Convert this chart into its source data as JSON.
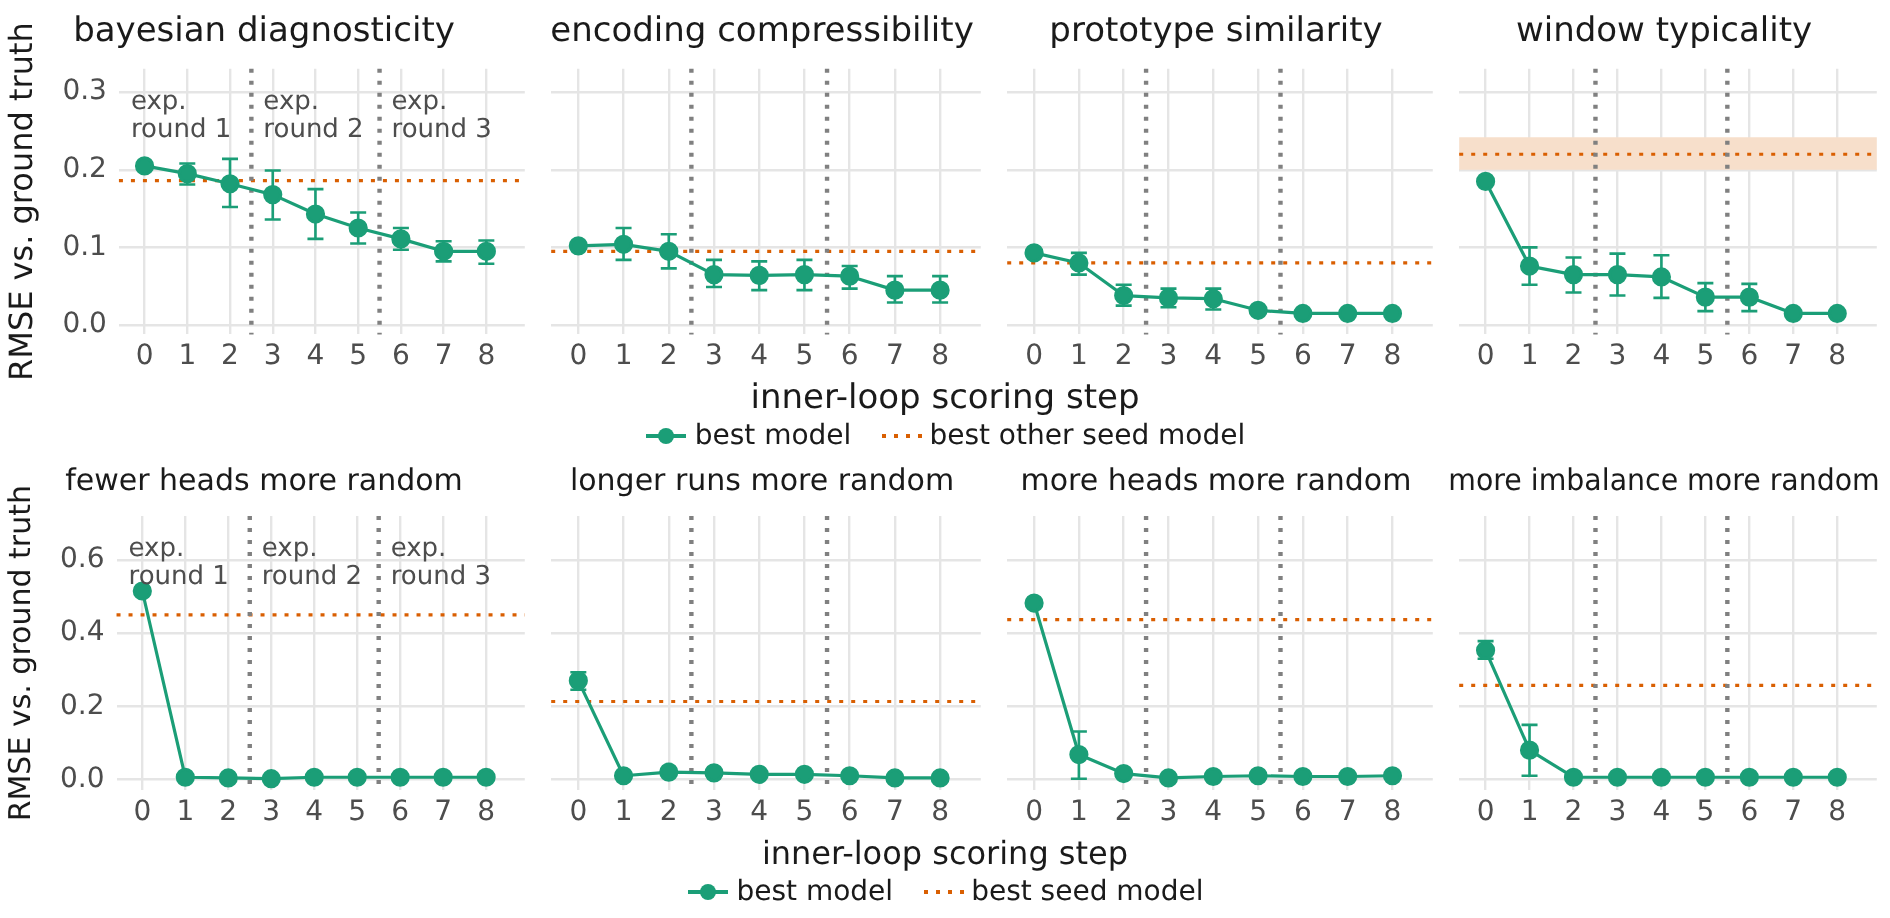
{
  "chart_data": [
    {
      "type": "line",
      "title": "bayesian diagnosticity",
      "ylabel": "RMSE vs. ground truth",
      "x": [
        0,
        1,
        2,
        3,
        4,
        5,
        6,
        7,
        8
      ],
      "xlim": [
        -0.6,
        8.9
      ],
      "xticks": [
        0,
        1,
        2,
        3,
        4,
        5,
        6,
        7,
        8
      ],
      "ylim": [
        -0.012,
        0.33
      ],
      "yticks": [
        {
          "value": 0,
          "label": "0.0"
        },
        {
          "value": 0.1,
          "label": "0.1"
        },
        {
          "value": 0.2,
          "label": "0.2"
        },
        {
          "value": 0.3,
          "label": "0.3"
        }
      ],
      "grid": true,
      "legend": "bottom",
      "series": [
        {
          "name": "best model",
          "color": "#1b9e77",
          "marker": "circle",
          "values": [
            0.205,
            0.195,
            0.182,
            0.168,
            0.143,
            0.125,
            0.111,
            0.095,
            0.095
          ],
          "errors": [
            null,
            [
              0.181,
              0.208
            ],
            [
              0.152,
              0.214
            ],
            [
              0.136,
              0.199
            ],
            [
              0.111,
              0.175
            ],
            [
              0.105,
              0.145
            ],
            [
              0.097,
              0.125
            ],
            [
              0.082,
              0.108
            ],
            [
              0.079,
              0.109
            ]
          ]
        }
      ],
      "ref_lines": [
        {
          "axis": "y",
          "value": 0.186,
          "label": "best other seed model",
          "color": "#d95f02",
          "line_style": "dotted"
        },
        {
          "axis": "x",
          "value": 2.5,
          "color": "#808080",
          "line_style": "dotted"
        },
        {
          "axis": "x",
          "value": 5.5,
          "color": "#808080",
          "line_style": "dotted"
        }
      ],
      "annotations": [
        "exp.\nround 1",
        "exp.\nround 2",
        "exp.\nround 3"
      ]
    },
    {
      "type": "line",
      "title": "encoding compressibility",
      "xlabel": "inner-loop scoring step",
      "x": [
        0,
        1,
        2,
        3,
        4,
        5,
        6,
        7,
        8
      ],
      "xlim": [
        -0.6,
        8.9
      ],
      "xticks": [
        0,
        1,
        2,
        3,
        4,
        5,
        6,
        7,
        8
      ],
      "ylim": [
        -0.012,
        0.33
      ],
      "yticks": [
        0,
        0.1,
        0.2,
        0.3
      ],
      "grid": true,
      "tick_labels": "x",
      "series": [
        {
          "color": "#1b9e77",
          "marker": "circle",
          "values": [
            0.102,
            0.104,
            0.095,
            0.065,
            0.064,
            0.065,
            0.063,
            0.045,
            0.045
          ],
          "errors": [
            null,
            [
              0.084,
              0.125
            ],
            [
              0.073,
              0.117
            ],
            [
              0.049,
              0.084
            ],
            [
              0.045,
              0.082
            ],
            [
              0.045,
              0.084
            ],
            [
              0.047,
              0.076
            ],
            [
              0.029,
              0.063
            ],
            [
              0.029,
              0.063
            ]
          ]
        }
      ],
      "ref_lines": [
        {
          "axis": "y",
          "value": 0.095,
          "color": "#d95f02",
          "line_style": "dotted"
        },
        {
          "axis": "x",
          "value": 2.5,
          "color": "#808080",
          "line_style": "dotted"
        },
        {
          "axis": "x",
          "value": 5.5,
          "color": "#808080",
          "line_style": "dotted"
        }
      ]
    },
    {
      "type": "line",
      "title": "prototype similarity",
      "x": [
        0,
        1,
        2,
        3,
        4,
        5,
        6,
        7,
        8
      ],
      "xlim": [
        -0.6,
        8.9
      ],
      "xticks": [
        0,
        1,
        2,
        3,
        4,
        5,
        6,
        7,
        8
      ],
      "ylim": [
        -0.012,
        0.33
      ],
      "yticks": [
        0,
        0.1,
        0.2,
        0.3
      ],
      "grid": true,
      "tick_labels": "x",
      "series": [
        {
          "color": "#1b9e77",
          "marker": "circle",
          "values": [
            0.093,
            0.08,
            0.038,
            0.035,
            0.034,
            0.019,
            0.015,
            0.015,
            0.015
          ],
          "errors": [
            null,
            [
              0.065,
              0.093
            ],
            [
              0.025,
              0.052
            ],
            [
              0.023,
              0.047
            ],
            [
              0.02,
              0.047
            ],
            null,
            null,
            null,
            null
          ]
        }
      ],
      "ref_lines": [
        {
          "axis": "y",
          "value": 0.08,
          "color": "#d95f02",
          "line_style": "dotted"
        },
        {
          "axis": "x",
          "value": 2.5,
          "color": "#808080",
          "line_style": "dotted"
        },
        {
          "axis": "x",
          "value": 5.5,
          "color": "#808080",
          "line_style": "dotted"
        }
      ]
    },
    {
      "type": "line",
      "title": "window typicality",
      "x": [
        0,
        1,
        2,
        3,
        4,
        5,
        6,
        7,
        8
      ],
      "xlim": [
        -0.6,
        8.9
      ],
      "xticks": [
        0,
        1,
        2,
        3,
        4,
        5,
        6,
        7,
        8
      ],
      "ylim": [
        -0.012,
        0.33
      ],
      "yticks": [
        0,
        0.1,
        0.2,
        0.3
      ],
      "grid": true,
      "tick_labels": "x",
      "series": [
        {
          "color": "#1b9e77",
          "marker": "circle",
          "values": [
            0.185,
            0.076,
            0.065,
            0.065,
            0.062,
            0.036,
            0.036,
            0.015,
            0.015
          ],
          "errors": [
            null,
            [
              0.052,
              0.1
            ],
            [
              0.042,
              0.087
            ],
            [
              0.038,
              0.092
            ],
            [
              0.035,
              0.09
            ],
            [
              0.018,
              0.054
            ],
            [
              0.018,
              0.053
            ],
            null,
            null
          ]
        }
      ],
      "bands": [
        {
          "axis": "y",
          "from": 0.2,
          "to": 0.242,
          "color": "#f7dfcb"
        }
      ],
      "ref_lines": [
        {
          "axis": "y",
          "value": 0.22,
          "color": "#d95f02",
          "line_style": "dotted"
        },
        {
          "axis": "x",
          "value": 2.5,
          "color": "#808080",
          "line_style": "dotted"
        },
        {
          "axis": "x",
          "value": 5.5,
          "color": "#808080",
          "line_style": "dotted"
        }
      ]
    },
    {
      "type": "line",
      "title": "fewer heads more random",
      "ylabel": "RMSE vs. ground truth",
      "x": [
        0,
        1,
        2,
        3,
        4,
        5,
        6,
        7,
        8
      ],
      "xlim": [
        -0.6,
        8.9
      ],
      "xticks": [
        0,
        1,
        2,
        3,
        4,
        5,
        6,
        7,
        8
      ],
      "ylim": [
        -0.03,
        0.72
      ],
      "yticks": [
        {
          "value": 0,
          "label": "0.0"
        },
        {
          "value": 0.2,
          "label": "0.2"
        },
        {
          "value": 0.4,
          "label": "0.4"
        },
        {
          "value": 0.6,
          "label": "0.6"
        }
      ],
      "grid": true,
      "legend": "bottom",
      "series": [
        {
          "name": "best model",
          "color": "#1b9e77",
          "marker": "circle",
          "values": [
            0.515,
            0.006,
            0.004,
            0.002,
            0.006,
            0.006,
            0.006,
            0.006,
            0.006
          ]
        }
      ],
      "ref_lines": [
        {
          "axis": "y",
          "value": 0.45,
          "label": "best seed model",
          "color": "#d95f02",
          "line_style": "dotted"
        },
        {
          "axis": "x",
          "value": 2.5,
          "color": "#808080",
          "line_style": "dotted"
        },
        {
          "axis": "x",
          "value": 5.5,
          "color": "#808080",
          "line_style": "dotted"
        }
      ],
      "annotations": [
        "exp.\nround 1",
        "exp.\nround 2",
        "exp.\nround 3"
      ]
    },
    {
      "type": "line",
      "title": "longer runs more random",
      "xlabel": "inner-loop scoring step",
      "x": [
        0,
        1,
        2,
        3,
        4,
        5,
        6,
        7,
        8
      ],
      "xlim": [
        -0.6,
        8.9
      ],
      "xticks": [
        0,
        1,
        2,
        3,
        4,
        5,
        6,
        7,
        8
      ],
      "ylim": [
        -0.03,
        0.72
      ],
      "yticks": [
        0,
        0.2,
        0.4,
        0.6
      ],
      "grid": true,
      "tick_labels": "x",
      "series": [
        {
          "color": "#1b9e77",
          "marker": "circle",
          "values": [
            0.27,
            0.01,
            0.02,
            0.018,
            0.014,
            0.014,
            0.01,
            0.004,
            0.004
          ],
          "errors": [
            [
              0.245,
              0.293
            ],
            null,
            null,
            null,
            null,
            null,
            null,
            null,
            null
          ]
        }
      ],
      "ref_lines": [
        {
          "axis": "y",
          "value": 0.213,
          "color": "#d95f02",
          "line_style": "dotted"
        },
        {
          "axis": "x",
          "value": 2.5,
          "color": "#808080",
          "line_style": "dotted"
        },
        {
          "axis": "x",
          "value": 5.5,
          "color": "#808080",
          "line_style": "dotted"
        }
      ]
    },
    {
      "type": "line",
      "title": "more heads more random",
      "x": [
        0,
        1,
        2,
        3,
        4,
        5,
        6,
        7,
        8
      ],
      "xlim": [
        -0.6,
        8.9
      ],
      "xticks": [
        0,
        1,
        2,
        3,
        4,
        5,
        6,
        7,
        8
      ],
      "ylim": [
        -0.03,
        0.72
      ],
      "yticks": [
        0,
        0.2,
        0.4,
        0.6
      ],
      "grid": true,
      "tick_labels": "x",
      "series": [
        {
          "color": "#1b9e77",
          "marker": "circle",
          "values": [
            0.482,
            0.068,
            0.016,
            0.004,
            0.008,
            0.01,
            0.008,
            0.008,
            0.01
          ],
          "errors": [
            null,
            [
              0.002,
              0.131
            ],
            null,
            null,
            null,
            null,
            null,
            null,
            null
          ]
        }
      ],
      "ref_lines": [
        {
          "axis": "y",
          "value": 0.437,
          "color": "#d95f02",
          "line_style": "dotted"
        },
        {
          "axis": "x",
          "value": 2.5,
          "color": "#808080",
          "line_style": "dotted"
        },
        {
          "axis": "x",
          "value": 5.5,
          "color": "#808080",
          "line_style": "dotted"
        }
      ]
    },
    {
      "type": "line",
      "title": "more imbalance more random",
      "x": [
        0,
        1,
        2,
        3,
        4,
        5,
        6,
        7,
        8
      ],
      "xlim": [
        -0.6,
        8.9
      ],
      "xticks": [
        0,
        1,
        2,
        3,
        4,
        5,
        6,
        7,
        8
      ],
      "ylim": [
        -0.03,
        0.72
      ],
      "yticks": [
        0,
        0.2,
        0.4,
        0.6
      ],
      "grid": true,
      "tick_labels": "x",
      "series": [
        {
          "color": "#1b9e77",
          "marker": "circle",
          "values": [
            0.353,
            0.08,
            0.006,
            0.006,
            0.006,
            0.006,
            0.006,
            0.006,
            0.006
          ],
          "errors": [
            [
              0.33,
              0.378
            ],
            [
              0.01,
              0.149
            ],
            null,
            null,
            null,
            null,
            null,
            null,
            null
          ]
        }
      ],
      "ref_lines": [
        {
          "axis": "y",
          "value": 0.257,
          "color": "#d95f02",
          "line_style": "dotted"
        },
        {
          "axis": "x",
          "value": 2.5,
          "color": "#808080",
          "line_style": "dotted"
        },
        {
          "axis": "x",
          "value": 5.5,
          "color": "#808080",
          "line_style": "dotted"
        }
      ]
    }
  ]
}
